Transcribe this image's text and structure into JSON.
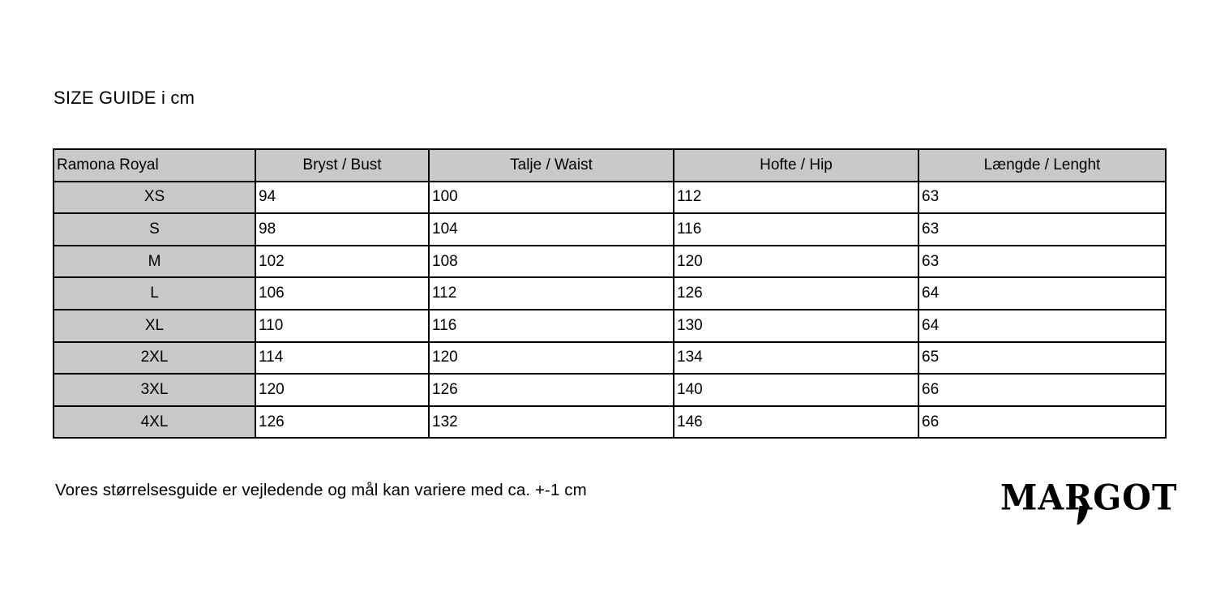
{
  "page": {
    "title": "SIZE GUIDE i cm",
    "footnote": "Vores størrelsesguide er vejledende og mål kan variere med ca. +-1 cm",
    "brand": "MARGOT"
  },
  "colors": {
    "table_header_bg": "#c9c9c9",
    "table_border": "#000000",
    "text": "#000000"
  },
  "table": {
    "name_header": "Ramona Royal",
    "columns": [
      "Bryst / Bust",
      "Talje / Waist",
      "Hofte / Hip",
      "Længde / Lenght"
    ],
    "rows": [
      {
        "size": "XS",
        "values": [
          "94",
          "100",
          "112",
          "63"
        ]
      },
      {
        "size": "S",
        "values": [
          "98",
          "104",
          "116",
          "63"
        ]
      },
      {
        "size": "M",
        "values": [
          "102",
          "108",
          "120",
          "63"
        ]
      },
      {
        "size": "L",
        "values": [
          "106",
          "112",
          "126",
          "64"
        ]
      },
      {
        "size": "XL",
        "values": [
          "110",
          "116",
          "130",
          "64"
        ]
      },
      {
        "size": "2XL",
        "values": [
          "114",
          "120",
          "134",
          "65"
        ]
      },
      {
        "size": "3XL",
        "values": [
          "120",
          "126",
          "140",
          "66"
        ]
      },
      {
        "size": "4XL",
        "values": [
          "126",
          "132",
          "146",
          "66"
        ]
      }
    ]
  }
}
